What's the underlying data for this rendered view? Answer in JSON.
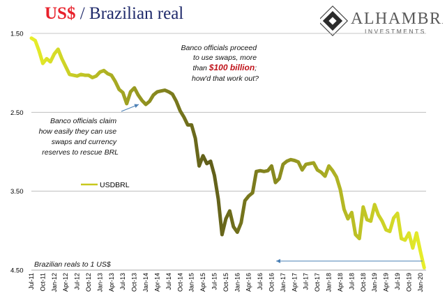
{
  "title": {
    "currency": "US$",
    "rest": " / Brazilian real"
  },
  "logo": {
    "name": "ALHAMBRA",
    "sub": "INVESTMENTS"
  },
  "chart_data": {
    "type": "line",
    "title": "US$ / Brazilian real",
    "y_inverted": true,
    "ylim": [
      1.5,
      4.5
    ],
    "y_ticks": [
      "1.50",
      "2.50",
      "3.50",
      "4.50"
    ],
    "grid": "horizontal",
    "x_ticks": [
      "Jul-11",
      "Oct-11",
      "Jan-12",
      "Apr-12",
      "Jul-12",
      "Oct-12",
      "Jan-13",
      "Apr-13",
      "Jul-13",
      "Oct-13",
      "Jan-14",
      "Apr-14",
      "Jul-14",
      "Oct-14",
      "Jan-15",
      "Apr-15",
      "Jul-15",
      "Oct-15",
      "Jan-16",
      "Apr-16",
      "Jul-16",
      "Oct-16",
      "Jan-17",
      "Apr-17",
      "Jul-17",
      "Oct-17",
      "Jan-18",
      "Apr-18",
      "Jul-18",
      "Oct-18",
      "Jan-19",
      "Apr-19",
      "Jul-19",
      "Oct-19",
      "Jan-20"
    ],
    "series": [
      {
        "name": "USDBRL",
        "x": [
          "2011-07",
          "2011-08",
          "2011-09",
          "2011-10",
          "2011-11",
          "2011-12",
          "2012-01",
          "2012-02",
          "2012-03",
          "2012-04",
          "2012-05",
          "2012-06",
          "2012-07",
          "2012-08",
          "2012-09",
          "2012-10",
          "2012-11",
          "2012-12",
          "2013-01",
          "2013-02",
          "2013-03",
          "2013-04",
          "2013-05",
          "2013-06",
          "2013-07",
          "2013-08",
          "2013-09",
          "2013-10",
          "2013-11",
          "2013-12",
          "2014-01",
          "2014-02",
          "2014-03",
          "2014-04",
          "2014-05",
          "2014-06",
          "2014-07",
          "2014-08",
          "2014-09",
          "2014-10",
          "2014-11",
          "2014-12",
          "2015-01",
          "2015-02",
          "2015-03",
          "2015-04",
          "2015-05",
          "2015-06",
          "2015-07",
          "2015-08",
          "2015-09",
          "2015-10",
          "2015-11",
          "2015-12",
          "2016-01",
          "2016-02",
          "2016-03",
          "2016-04",
          "2016-05",
          "2016-06",
          "2016-07",
          "2016-08",
          "2016-09",
          "2016-10",
          "2016-11",
          "2016-12",
          "2017-01",
          "2017-02",
          "2017-03",
          "2017-04",
          "2017-05",
          "2017-06",
          "2017-07",
          "2017-08",
          "2017-09",
          "2017-10",
          "2017-11",
          "2017-12",
          "2018-01",
          "2018-02",
          "2018-03",
          "2018-04",
          "2018-05",
          "2018-06",
          "2018-07",
          "2018-08",
          "2018-09",
          "2018-10",
          "2018-11",
          "2018-12",
          "2019-01",
          "2019-02",
          "2019-03",
          "2019-04",
          "2019-05",
          "2019-06",
          "2019-07",
          "2019-08",
          "2019-09",
          "2019-10",
          "2019-11",
          "2019-12",
          "2020-01",
          "2020-02"
        ],
        "values": [
          1.56,
          1.59,
          1.72,
          1.88,
          1.82,
          1.86,
          1.76,
          1.7,
          1.82,
          1.92,
          2.02,
          2.03,
          2.04,
          2.02,
          2.03,
          2.03,
          2.06,
          2.04,
          1.99,
          1.97,
          2.01,
          2.03,
          2.11,
          2.21,
          2.25,
          2.39,
          2.24,
          2.19,
          2.28,
          2.35,
          2.4,
          2.36,
          2.28,
          2.24,
          2.23,
          2.22,
          2.24,
          2.27,
          2.36,
          2.48,
          2.56,
          2.66,
          2.66,
          2.83,
          3.18,
          3.05,
          3.15,
          3.12,
          3.3,
          3.6,
          4.05,
          3.85,
          3.75,
          3.95,
          4.02,
          3.9,
          3.62,
          3.56,
          3.52,
          3.25,
          3.24,
          3.25,
          3.24,
          3.18,
          3.39,
          3.34,
          3.16,
          3.12,
          3.1,
          3.11,
          3.13,
          3.23,
          3.16,
          3.15,
          3.14,
          3.23,
          3.26,
          3.31,
          3.18,
          3.24,
          3.32,
          3.48,
          3.73,
          3.85,
          3.77,
          4.05,
          4.1,
          3.7,
          3.86,
          3.88,
          3.67,
          3.8,
          3.88,
          3.99,
          4.01,
          3.84,
          3.78,
          4.1,
          4.12,
          4.03,
          4.22,
          4.03,
          4.26,
          4.47
        ]
      }
    ],
    "annotations": [
      {
        "lines": [
          "Banco officials claim",
          "how easily they can use",
          "swaps and currency",
          "reserves to rescue BRL"
        ]
      },
      {
        "lines": [
          "Banco officials proceed",
          "to use swaps, more",
          "than ",
          "$100 billion",
          ";",
          "how'd that work out?"
        ]
      },
      {
        "text": "Brazilian reals to 1 US$"
      }
    ],
    "legend": {
      "label": "USDBRL",
      "position": "left-middle"
    },
    "colors": {
      "start": "#e8ef2a",
      "mid": "#5f5d1a",
      "end": "#e8ef2a",
      "arrow": "#4a7fb5",
      "grid": "#b4b4b4"
    }
  }
}
